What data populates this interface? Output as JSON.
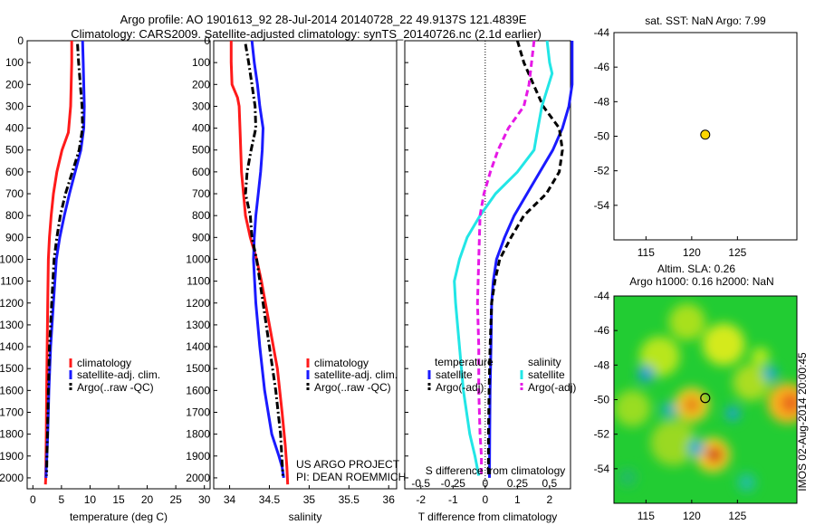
{
  "header": {
    "line1": "Argo profile: AO 1901613_92 28-Jul-2014 20140728_22 49.9137S 121.4839E",
    "line2": "Climatology: CARS2009. Satellite-adjusted climatology: synTS_20140726.nc (2.1d earlier)"
  },
  "colors": {
    "climatology": "#ff1a1a",
    "satellite": "#1a1aff",
    "argo": "#000000",
    "satellite_salinity": "#22e6e6",
    "argo_salinity": "#e619e6",
    "float_marker": "#ffd700"
  },
  "chart_data": [
    {
      "type": "line",
      "panel": "temperature",
      "xlabel": "temperature (deg C)",
      "xlim": [
        -1,
        31
      ],
      "xticks": [
        0,
        5,
        10,
        15,
        20,
        25,
        30
      ],
      "ylim": [
        2050,
        0
      ],
      "yticks": [
        0,
        100,
        200,
        300,
        400,
        500,
        600,
        700,
        800,
        900,
        1000,
        1100,
        1200,
        1300,
        1400,
        1500,
        1600,
        1700,
        1800,
        1900,
        2000
      ],
      "legend": [
        "climatology",
        "satellite-adj. clim.",
        "Argo(..raw -QC)"
      ],
      "series": [
        {
          "name": "climatology",
          "style": "solid",
          "color_key": "climatology",
          "x": [
            6.8,
            6.8,
            6.7,
            6.6,
            6.2,
            5.1,
            4.2,
            3.6,
            3.2,
            2.9,
            2.7,
            2.6,
            2.5,
            2.4,
            2.35,
            2.3,
            2.25,
            2.2
          ],
          "y": [
            0,
            100,
            200,
            300,
            420,
            500,
            600,
            700,
            800,
            900,
            1000,
            1200,
            1400,
            1600,
            1800,
            1900,
            2000,
            2030
          ]
        },
        {
          "name": "satellite-adj. clim.",
          "style": "solid",
          "color_key": "satellite",
          "x": [
            8.7,
            8.8,
            8.9,
            9.0,
            8.9,
            8.4,
            7.4,
            6.4,
            5.5,
            4.7,
            4.1,
            3.6,
            3.1,
            2.8,
            2.6,
            2.45,
            2.35,
            2.3
          ],
          "y": [
            0,
            100,
            200,
            300,
            400,
            500,
            600,
            700,
            800,
            900,
            1000,
            1200,
            1400,
            1600,
            1800,
            1900,
            1950,
            2000
          ]
        },
        {
          "name": "Argo(..raw -QC)",
          "style": "dashdot",
          "color_key": "argo",
          "x": [
            7.8,
            8.0,
            8.3,
            8.6,
            8.7,
            8.1,
            6.9,
            5.7,
            4.8,
            4.2,
            3.7,
            3.3,
            2.9,
            2.7,
            2.55,
            2.45,
            2.4
          ],
          "y": [
            15,
            100,
            200,
            300,
            400,
            500,
            600,
            700,
            800,
            900,
            1000,
            1200,
            1400,
            1600,
            1800,
            1900,
            1990
          ]
        }
      ]
    },
    {
      "type": "line",
      "panel": "salinity",
      "xlabel": "salinity",
      "xlim": [
        33.8,
        36.1
      ],
      "xticks": [
        34,
        34.5,
        35,
        35.5,
        36
      ],
      "ylim": [
        2050,
        0
      ],
      "yticks": [
        0,
        100,
        200,
        300,
        400,
        500,
        600,
        700,
        800,
        900,
        1000,
        1100,
        1200,
        1300,
        1400,
        1500,
        1600,
        1700,
        1800,
        1900,
        2000
      ],
      "legend": [
        "climatology",
        "satellite-adj. clim.",
        "Argo(..raw -QC)"
      ],
      "annotations": [
        "US ARGO PROJECT",
        "PI: DEAN ROEMMICH"
      ],
      "series": [
        {
          "name": "climatology",
          "style": "solid",
          "color_key": "climatology",
          "x": [
            34.02,
            34.02,
            34.03,
            34.1,
            34.12,
            34.13,
            34.15,
            34.2,
            34.26,
            34.34,
            34.4,
            34.5,
            34.6,
            34.66,
            34.7,
            34.72,
            34.73
          ],
          "y": [
            0,
            100,
            200,
            260,
            300,
            400,
            600,
            800,
            900,
            1000,
            1100,
            1300,
            1500,
            1700,
            1850,
            1950,
            2030
          ]
        },
        {
          "name": "satellite-adj. clim.",
          "style": "solid",
          "color_key": "satellite",
          "x": [
            34.28,
            34.31,
            34.35,
            34.38,
            34.42,
            34.41,
            34.39,
            34.36,
            34.33,
            34.31,
            34.3,
            34.33,
            34.38,
            34.44,
            34.53,
            34.62,
            34.66,
            34.68
          ],
          "y": [
            0,
            100,
            200,
            300,
            400,
            500,
            600,
            700,
            800,
            900,
            1000,
            1200,
            1400,
            1600,
            1800,
            1900,
            1950,
            2000
          ]
        },
        {
          "name": "Argo(..raw -QC)",
          "style": "dashdot",
          "color_key": "argo",
          "x": [
            34.2,
            34.24,
            34.28,
            34.32,
            34.33,
            34.27,
            34.22,
            34.2,
            34.26,
            34.28,
            34.34,
            34.42,
            34.5,
            34.58,
            34.64,
            34.67
          ],
          "y": [
            15,
            100,
            200,
            300,
            400,
            500,
            600,
            700,
            800,
            900,
            1000,
            1200,
            1400,
            1600,
            1800,
            1990
          ]
        }
      ]
    },
    {
      "type": "line",
      "panel": "differences",
      "xlabel": "T difference from climatology",
      "top_xlabel": "S difference from climatology",
      "xlim": [
        -2.5,
        2.65
      ],
      "xticks": [
        -2,
        -1,
        0,
        1,
        2
      ],
      "top_xticks": [
        -0.5,
        -0.25,
        0,
        0.25,
        0.5
      ],
      "top_xtick_labels": [
        "-0.5",
        "-0.25",
        "0",
        "0.25",
        "0.5"
      ],
      "s_to_t_scale": 4,
      "ylim": [
        2050,
        0
      ],
      "legend": {
        "temperature_title": "temperature",
        "salinity_title": "salinity",
        "temperature": [
          "satellite",
          "Argo(-adj)"
        ],
        "salinity": [
          "satellite",
          "Argo(-adj)"
        ]
      },
      "series": [
        {
          "name": "temperature satellite",
          "style": "solid",
          "color_key": "satellite",
          "units": "T",
          "x": [
            2.7,
            2.7,
            2.7,
            2.6,
            2.4,
            2.1,
            1.7,
            1.3,
            0.9,
            0.6,
            0.35,
            0.25,
            0.2,
            0.18,
            0.15,
            0.14,
            0.13
          ],
          "y": [
            0,
            100,
            200,
            300,
            400,
            500,
            600,
            700,
            800,
            900,
            1000,
            1100,
            1200,
            1400,
            1600,
            1800,
            2000
          ]
        },
        {
          "name": "temperature Argo(-adj)",
          "style": "dashed",
          "color_key": "argo",
          "units": "T",
          "x": [
            1.0,
            1.2,
            1.5,
            1.8,
            2.3,
            2.4,
            2.3,
            1.9,
            1.2,
            0.8,
            0.45,
            0.3,
            0.2,
            0.15,
            0.12,
            0.1,
            0.1
          ],
          "y": [
            0,
            100,
            200,
            300,
            400,
            500,
            600,
            700,
            800,
            900,
            1000,
            1100,
            1200,
            1400,
            1600,
            1800,
            1990
          ]
        },
        {
          "name": "salinity satellite",
          "style": "solid",
          "color_key": "satellite_salinity",
          "units": "S",
          "x": [
            0.48,
            0.5,
            0.52,
            0.44,
            0.4,
            0.38,
            0.25,
            0.08,
            -0.04,
            -0.14,
            -0.2,
            -0.24,
            -0.23,
            -0.2,
            -0.17,
            -0.12,
            -0.08,
            -0.05
          ],
          "y": [
            0,
            100,
            150,
            300,
            430,
            500,
            600,
            700,
            800,
            900,
            1000,
            1100,
            1200,
            1400,
            1600,
            1800,
            1900,
            1990
          ]
        },
        {
          "name": "salinity Argo(-adj)",
          "style": "dashed",
          "color_key": "argo_salinity",
          "units": "S",
          "x": [
            0.38,
            0.36,
            0.34,
            0.3,
            0.18,
            0.1,
            0.04,
            -0.01,
            -0.04,
            -0.05,
            -0.06,
            -0.05,
            -0.05,
            -0.04,
            -0.03,
            -0.03
          ],
          "y": [
            0,
            100,
            200,
            300,
            400,
            500,
            600,
            700,
            800,
            1000,
            1200,
            1400,
            1600,
            1800,
            1900,
            1990
          ]
        }
      ]
    },
    {
      "type": "scatter",
      "panel": "map_sst",
      "title": "sat. SST: NaN Argo: 7.99",
      "xlim": [
        111.5,
        131.5
      ],
      "ylim": [
        -56,
        -44
      ],
      "xticks": [
        115,
        120,
        125
      ],
      "yticks": [
        -44,
        -46,
        -48,
        -50,
        -52,
        -54
      ],
      "points": [
        {
          "lon": 121.48,
          "lat": -49.91
        }
      ]
    },
    {
      "type": "heatmap",
      "panel": "map_sla",
      "title_line1": "Altim. SLA: 0.26",
      "title_line2": "Argo h1000: 0.16 h2000: NaN",
      "side_label": "IMOS 02-Aug-2014 20:00:45",
      "xlim": [
        111.5,
        131.5
      ],
      "ylim": [
        -56,
        -44
      ],
      "xticks": [
        115,
        120,
        125
      ],
      "yticks": [
        -44,
        -46,
        -48,
        -50,
        -52,
        -54
      ],
      "base_color": "#22cc33",
      "blobs": [
        {
          "lon": 113.5,
          "lat": -50.5,
          "r": 2.0,
          "color": "#99dd22"
        },
        {
          "lon": 116.5,
          "lat": -47.5,
          "r": 2.2,
          "color": "#b8e61a"
        },
        {
          "lon": 119.5,
          "lat": -45.5,
          "r": 2.0,
          "color": "#a8e01c"
        },
        {
          "lon": 118.0,
          "lat": -52.5,
          "r": 2.5,
          "color": "#9ad922"
        },
        {
          "lon": 123.5,
          "lat": -46.8,
          "r": 2.3,
          "color": "#d4ea1a"
        },
        {
          "lon": 126.5,
          "lat": -49.0,
          "r": 2.0,
          "color": "#aadd20"
        },
        {
          "lon": 120.0,
          "lat": -50.3,
          "r": 1.9,
          "color": "#f2cc22"
        },
        {
          "lon": 120.0,
          "lat": -50.3,
          "r": 0.9,
          "color": "#e67a1a"
        },
        {
          "lon": 122.3,
          "lat": -53.2,
          "r": 1.9,
          "color": "#ffcc22"
        },
        {
          "lon": 122.5,
          "lat": -53.2,
          "r": 0.9,
          "color": "#cc2a1a"
        },
        {
          "lon": 130.5,
          "lat": -50.2,
          "r": 2.2,
          "color": "#ffb41a"
        },
        {
          "lon": 130.8,
          "lat": -50.2,
          "r": 1.1,
          "color": "#e8641a"
        },
        {
          "lon": 127.5,
          "lat": -47.5,
          "r": 1.0,
          "color": "#b8ea1a"
        },
        {
          "lon": 115.0,
          "lat": -48.5,
          "r": 0.9,
          "color": "#1a9ad9"
        },
        {
          "lon": 117.5,
          "lat": -50.6,
          "r": 0.8,
          "color": "#1aaacc"
        },
        {
          "lon": 124.5,
          "lat": -50.8,
          "r": 0.8,
          "color": "#1aa6cc"
        },
        {
          "lon": 120.5,
          "lat": -52.8,
          "r": 0.9,
          "color": "#15a8d6"
        },
        {
          "lon": 128.6,
          "lat": -48.5,
          "r": 0.8,
          "color": "#15a8d6"
        },
        {
          "lon": 126.0,
          "lat": -54.8,
          "r": 1.0,
          "color": "#22c0a0"
        },
        {
          "lon": 113.0,
          "lat": -54.5,
          "r": 1.0,
          "color": "#22bb66"
        }
      ],
      "points": [
        {
          "lon": 121.48,
          "lat": -49.91
        }
      ]
    }
  ]
}
